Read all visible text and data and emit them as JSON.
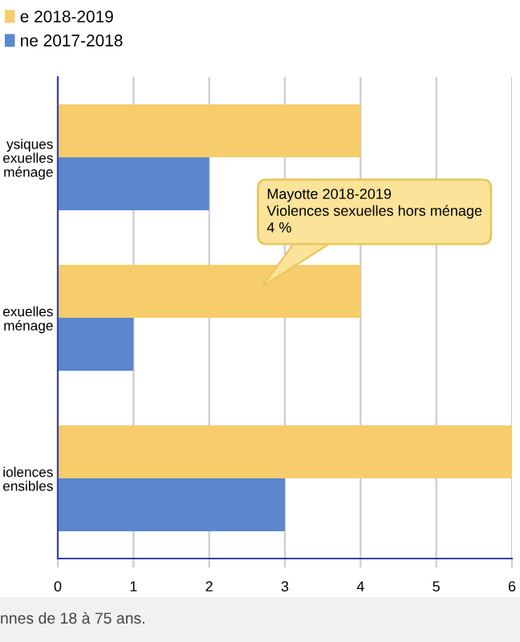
{
  "chart_data": {
    "type": "bar",
    "orientation": "horizontal",
    "categories": [
      "ysiques\nexuelles\nménage",
      "exuelles\nménage",
      "iolences\nensibles"
    ],
    "series": [
      {
        "name": "e 2018-2019",
        "color": "#f6cd6a",
        "values": [
          4,
          4,
          6
        ]
      },
      {
        "name": "ne 2017-2018",
        "color": "#5b87cf",
        "values": [
          2,
          1,
          3
        ]
      }
    ],
    "xlim": [
      0,
      6
    ],
    "xticks": [
      0,
      1,
      2,
      3,
      4,
      5,
      6
    ],
    "grid": "x",
    "legend": "top left",
    "annotations": [
      "Mayotte 2018-2019\nViolences sexuelles hors ménage\n4 %",
      "nnes de 18 à 75 ans."
    ]
  }
}
